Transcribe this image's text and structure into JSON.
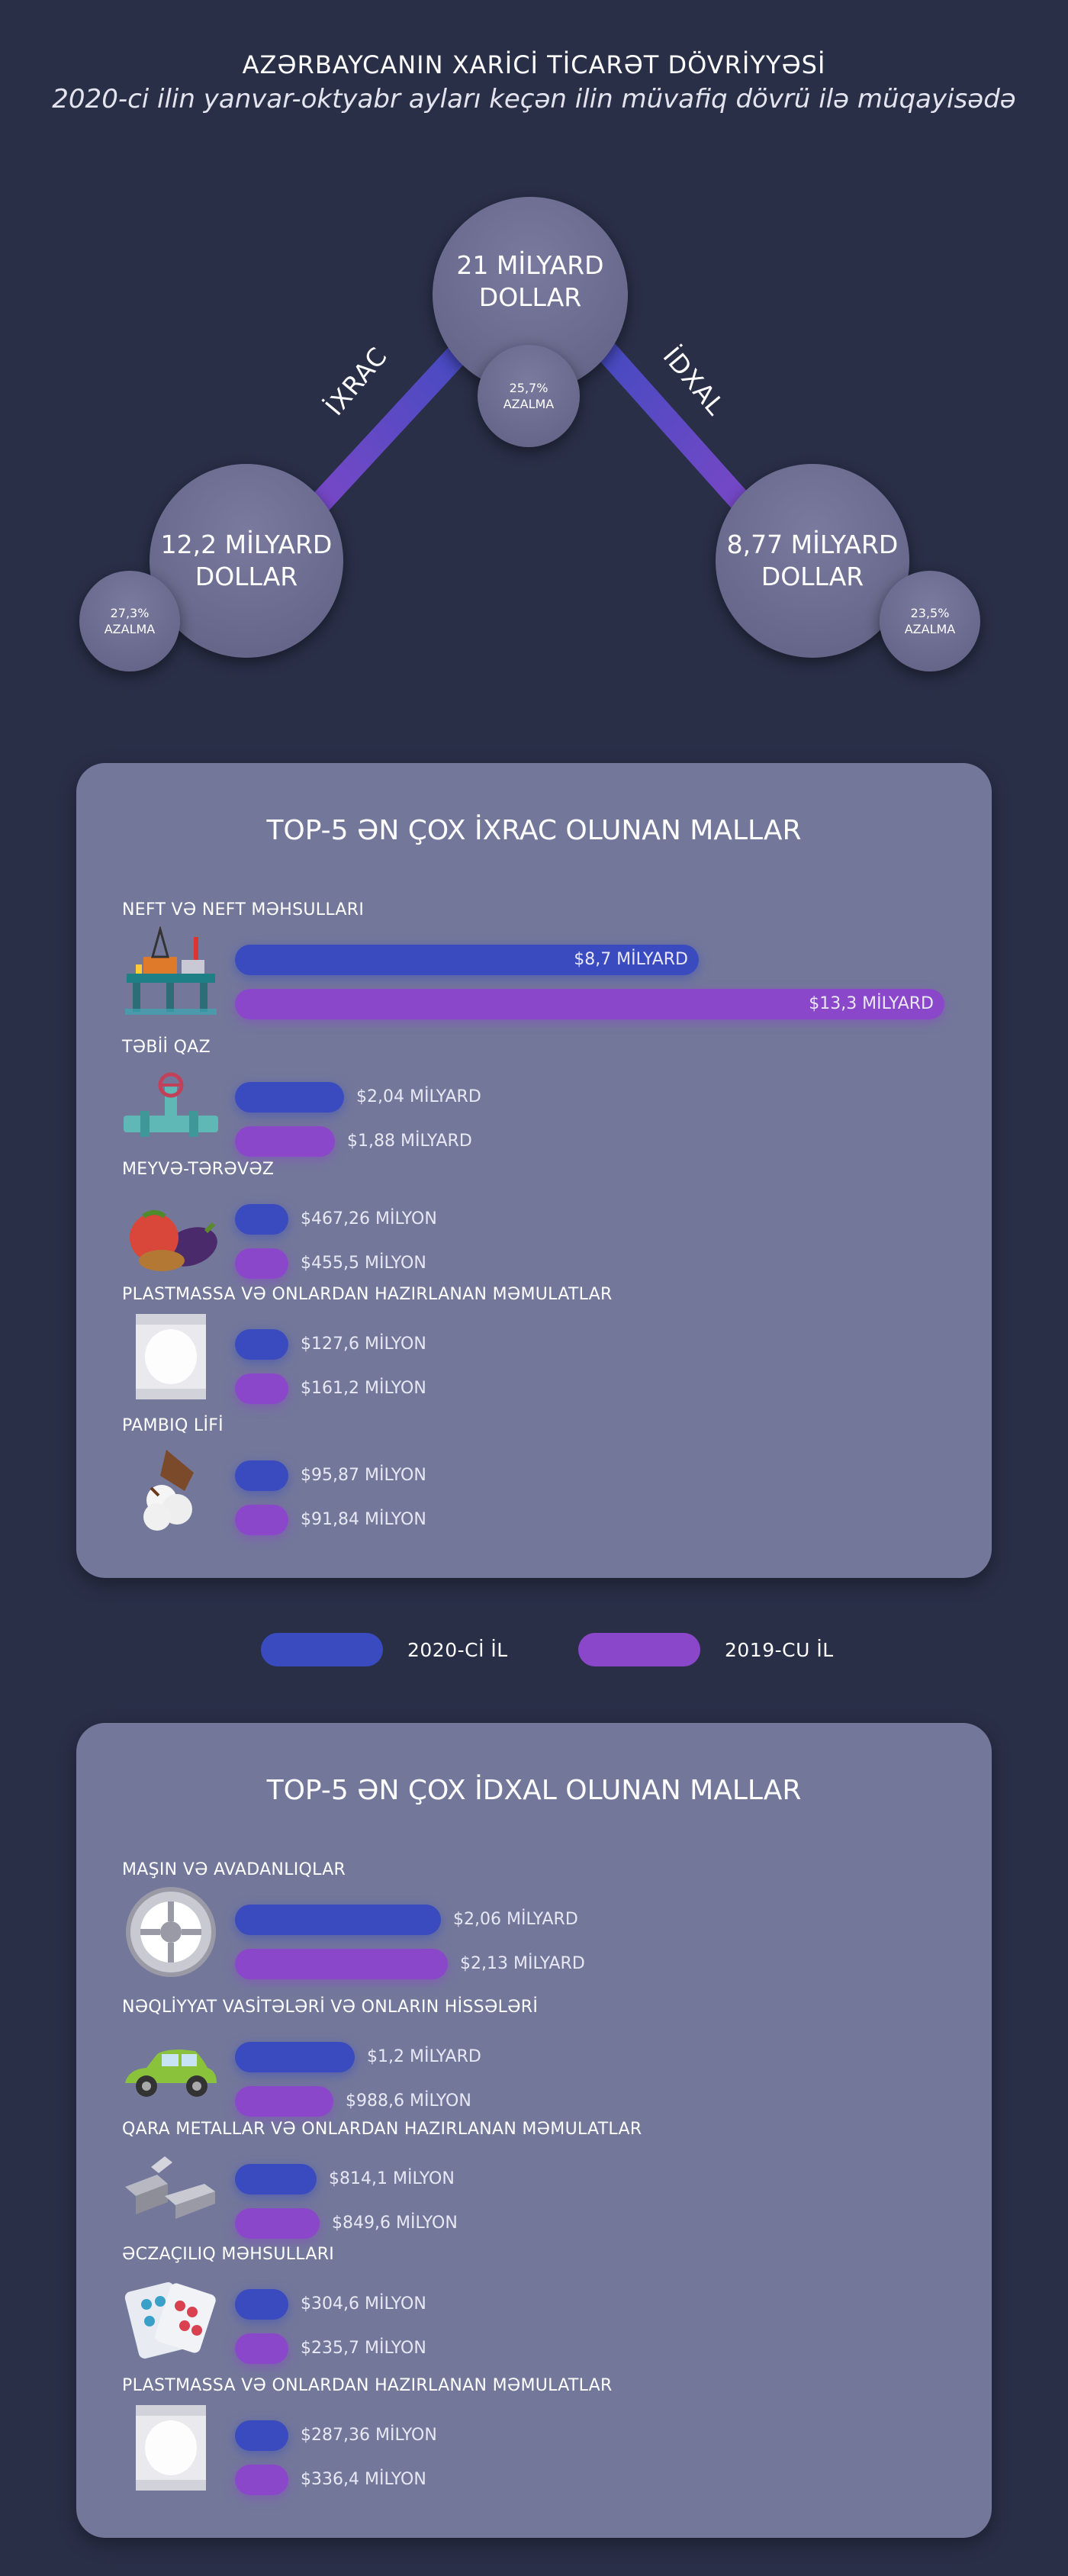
{
  "header": {
    "title": "AZƏRBAYCANIN XARİCİ TİCARƏT DÖVRİYYƏSİ",
    "subtitle": "2020-ci ilin yanvar-oktyabr ayları keçən ilin müvafiq dövrü ilə müqayisədə"
  },
  "hero": {
    "total": {
      "line1": "21 MİLYARD",
      "line2": "DOLLAR",
      "change": "25,7%",
      "change_label": "AZALMA"
    },
    "export": {
      "label": "İXRAC",
      "line1": "12,2 MİLYARD",
      "line2": "DOLLAR",
      "change": "27,3%",
      "change_label": "AZALMA"
    },
    "import": {
      "label": "İDXAL",
      "line1": "8,77 MİLYARD",
      "line2": "DOLLAR",
      "change": "23,5%",
      "change_label": "AZALMA"
    }
  },
  "colors": {
    "year_2020": "#3a4bbf",
    "year_2019": "#8b47c9",
    "panel": "#73789b",
    "background": "#2a2f48"
  },
  "legend": {
    "year_2020": "2020-Cİ İL",
    "year_2019": "2019-CU İL"
  },
  "chart_data": [
    {
      "type": "bar",
      "title": "TOP-5 ƏN ÇOX İXRAC OLUNAN MALLAR",
      "unit": "million USD",
      "categories": [
        "NEFT VƏ NEFT MƏHSULLARI",
        "TƏBİİ QAZ",
        "MEYVƏ-TƏRƏVƏZ",
        "PLASTMASSA VƏ ONLARDAN HAZIRLANAN MƏMULATLAR",
        "PAMBIQ LİFİ"
      ],
      "icons": [
        "oil-platform-icon",
        "gas-pipe-icon",
        "vegetables-icon",
        "plastic-bag-icon",
        "cotton-icon"
      ],
      "series": [
        {
          "name": "2020-Cİ İL",
          "values": [
            8700,
            2040,
            467.26,
            127.6,
            95.87
          ],
          "labels": [
            "$8,7 MİLYARD",
            "$2,04 MİLYARD",
            "$467,26 MİLYON",
            "$127,6 MİLYON",
            "$95,87 MİLYON"
          ]
        },
        {
          "name": "2019-CU İL",
          "values": [
            13300,
            1880,
            455.5,
            161.2,
            91.84
          ],
          "labels": [
            "$13,3 MİLYARD",
            "$1,88 MİLYARD",
            "$455,5 MİLYON",
            "$161,2 MİLYON",
            "$91,84 MİLYON"
          ]
        }
      ]
    },
    {
      "type": "bar",
      "title": "TOP-5 ƏN ÇOX İDXAL OLUNAN MALLAR",
      "unit": "million USD",
      "categories": [
        "MAŞIN VƏ AVADANLIQLAR",
        "NƏQLİYYAT VASİTƏLƏRİ VƏ ONLARIN HİSSƏLƏRİ",
        "QARA METALLAR VƏ ONLARDAN HAZIRLANAN MƏMULATLAR",
        "ƏCZAÇILIQ MƏHSULLARI",
        "PLASTMASSA VƏ ONLARDAN HAZIRLANAN MƏMULATLAR"
      ],
      "icons": [
        "gear-icon",
        "car-icon",
        "metal-bars-icon",
        "pills-icon",
        "plastic-bag-icon"
      ],
      "series": [
        {
          "name": "2020-Cİ İL",
          "values": [
            2060,
            1200,
            814.1,
            304.6,
            287.36
          ],
          "labels": [
            "$2,06 MİLYARD",
            "$1,2 MİLYARD",
            "$814,1 MİLYON",
            "$304,6 MİLYON",
            "$287,36 MİLYON"
          ]
        },
        {
          "name": "2019-CU İL",
          "values": [
            2130,
            988.6,
            849.6,
            235.7,
            336.4
          ],
          "labels": [
            "$2,13 MİLYARD",
            "$988,6 MİLYON",
            "$849,6 MİLYON",
            "$235,7 MİLYON",
            "$336,4 MİLYON"
          ]
        }
      ]
    }
  ]
}
